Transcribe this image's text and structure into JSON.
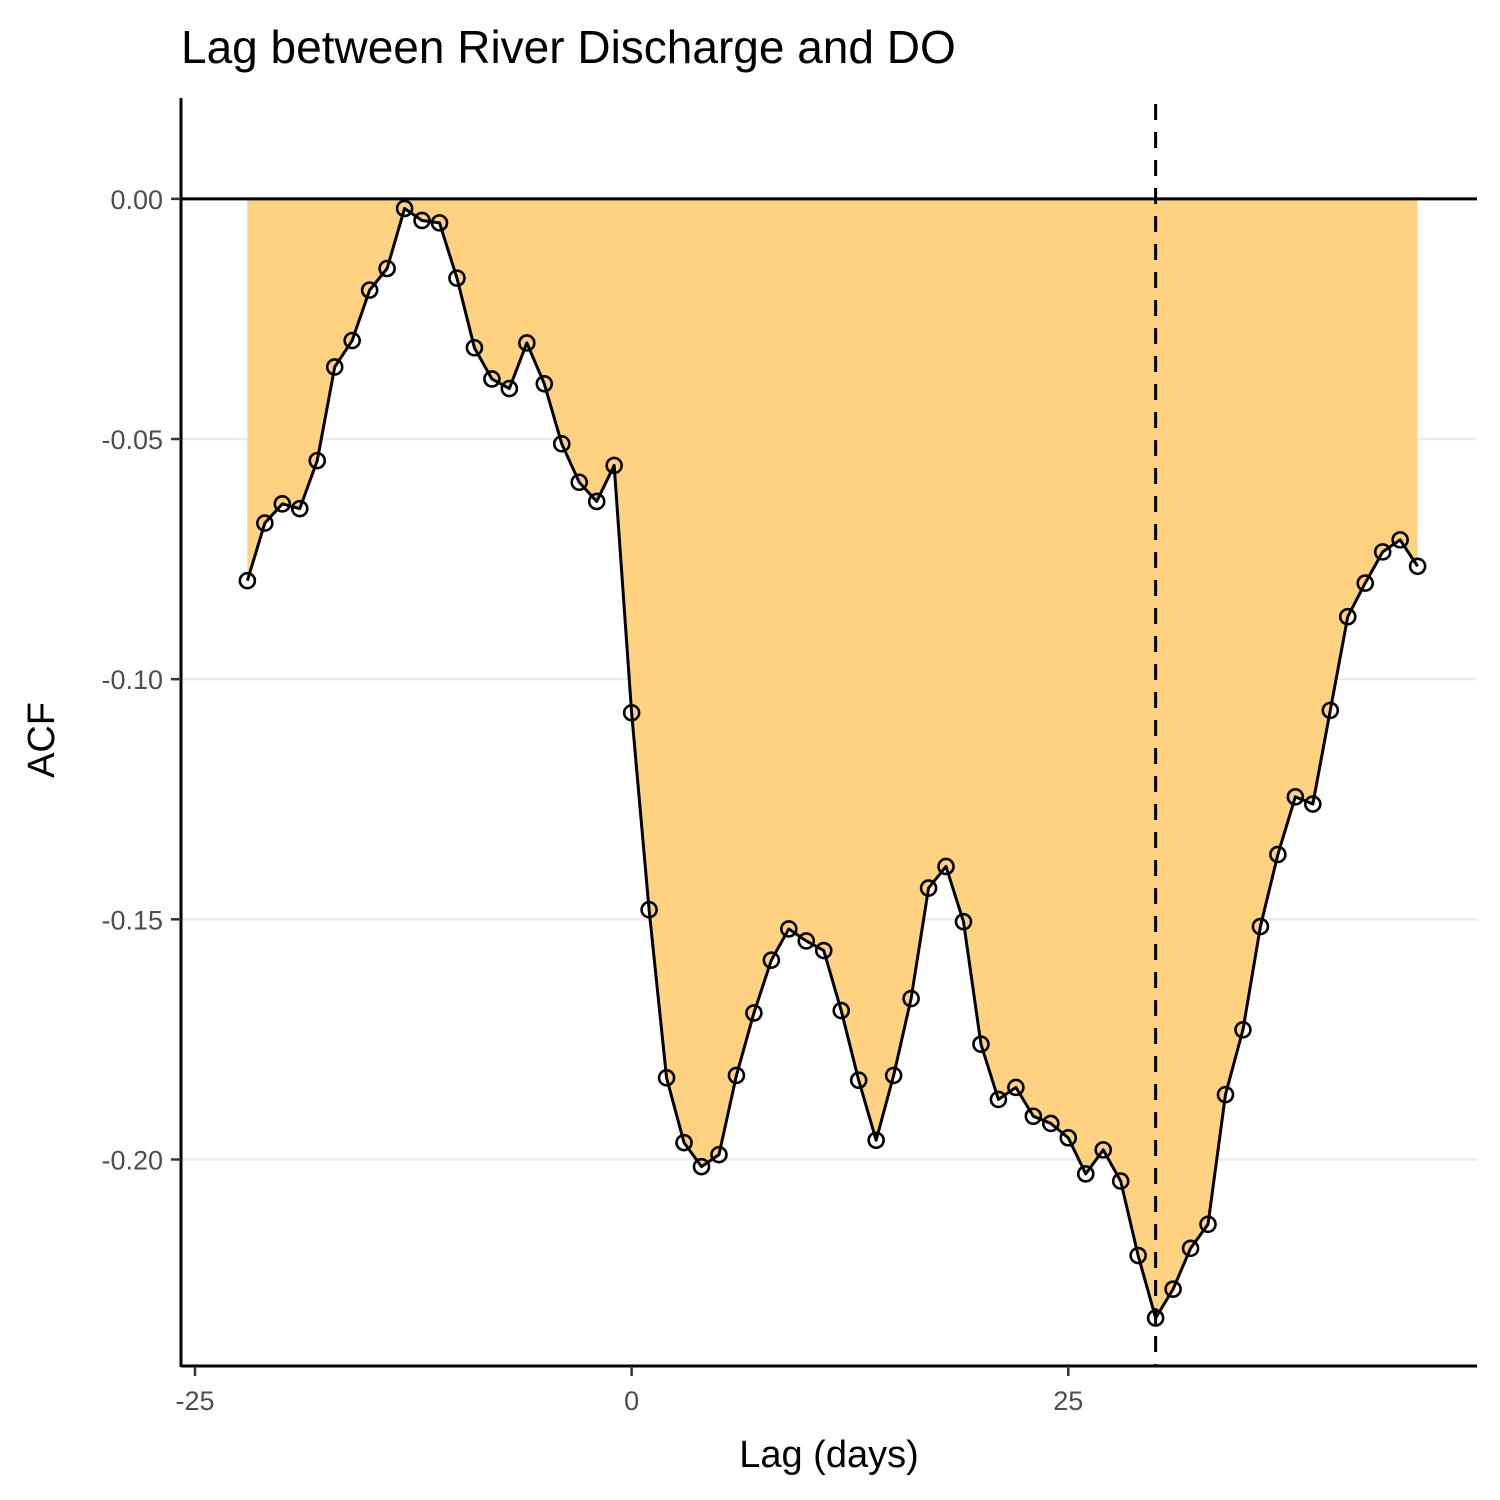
{
  "chart_data": {
    "type": "area",
    "title": "Lag between River Discharge and DO",
    "xlabel": "Lag (days)",
    "ylabel": "ACF",
    "xlim": [
      -25.8,
      48.4
    ],
    "ylim": [
      -0.243,
      0.021
    ],
    "x_ticks": [
      -25,
      0,
      25
    ],
    "x_tick_labels": [
      "-25",
      "0",
      "25"
    ],
    "y_ticks": [
      0.0,
      -0.05,
      -0.1,
      -0.15,
      -0.2
    ],
    "y_tick_labels": [
      "0.00",
      "-0.05",
      "-0.10",
      "-0.15",
      "-0.20"
    ],
    "grid": "horizontal major",
    "legend": "none",
    "reference_line_y": 0,
    "vertical_line_x": 30,
    "fill_color": "#fed281",
    "line_color": "#000000",
    "series": [
      {
        "x": [
          -22,
          -21,
          -20,
          -19,
          -18,
          -17,
          -16,
          -15,
          -14,
          -13,
          -12,
          -11,
          -10,
          -9,
          -8,
          -7,
          -6,
          -5,
          -4,
          -3,
          -2,
          -1,
          0,
          1,
          2,
          3,
          4,
          5,
          6,
          7,
          8,
          9,
          10,
          11,
          12,
          13,
          14,
          15,
          16,
          17,
          18,
          19,
          20,
          21,
          22,
          23,
          24,
          25,
          26,
          27,
          28,
          29,
          30,
          31,
          32,
          33,
          34,
          35,
          36,
          37,
          38,
          39,
          40,
          41,
          42,
          43,
          44,
          45
        ],
        "values": [
          -0.0795,
          -0.0675,
          -0.0635,
          -0.0645,
          -0.0545,
          -0.035,
          -0.0295,
          -0.019,
          -0.0145,
          -0.002,
          -0.0045,
          -0.005,
          -0.0165,
          -0.031,
          -0.0375,
          -0.0395,
          -0.03,
          -0.0385,
          -0.051,
          -0.059,
          -0.063,
          -0.0555,
          -0.107,
          -0.148,
          -0.183,
          -0.1965,
          -0.2015,
          -0.199,
          -0.1825,
          -0.1695,
          -0.1585,
          -0.152,
          -0.1545,
          -0.1565,
          -0.169,
          -0.1835,
          -0.196,
          -0.1825,
          -0.1665,
          -0.1435,
          -0.139,
          -0.1505,
          -0.176,
          -0.1875,
          -0.185,
          -0.191,
          -0.1925,
          -0.1955,
          -0.203,
          -0.198,
          -0.2045,
          -0.22,
          -0.233,
          -0.227,
          -0.2185,
          -0.2135,
          -0.1865,
          -0.173,
          -0.1515,
          -0.1365,
          -0.1245,
          -0.126,
          -0.1065,
          -0.087,
          -0.08,
          -0.0735,
          -0.071,
          -0.0765
        ]
      }
    ]
  }
}
